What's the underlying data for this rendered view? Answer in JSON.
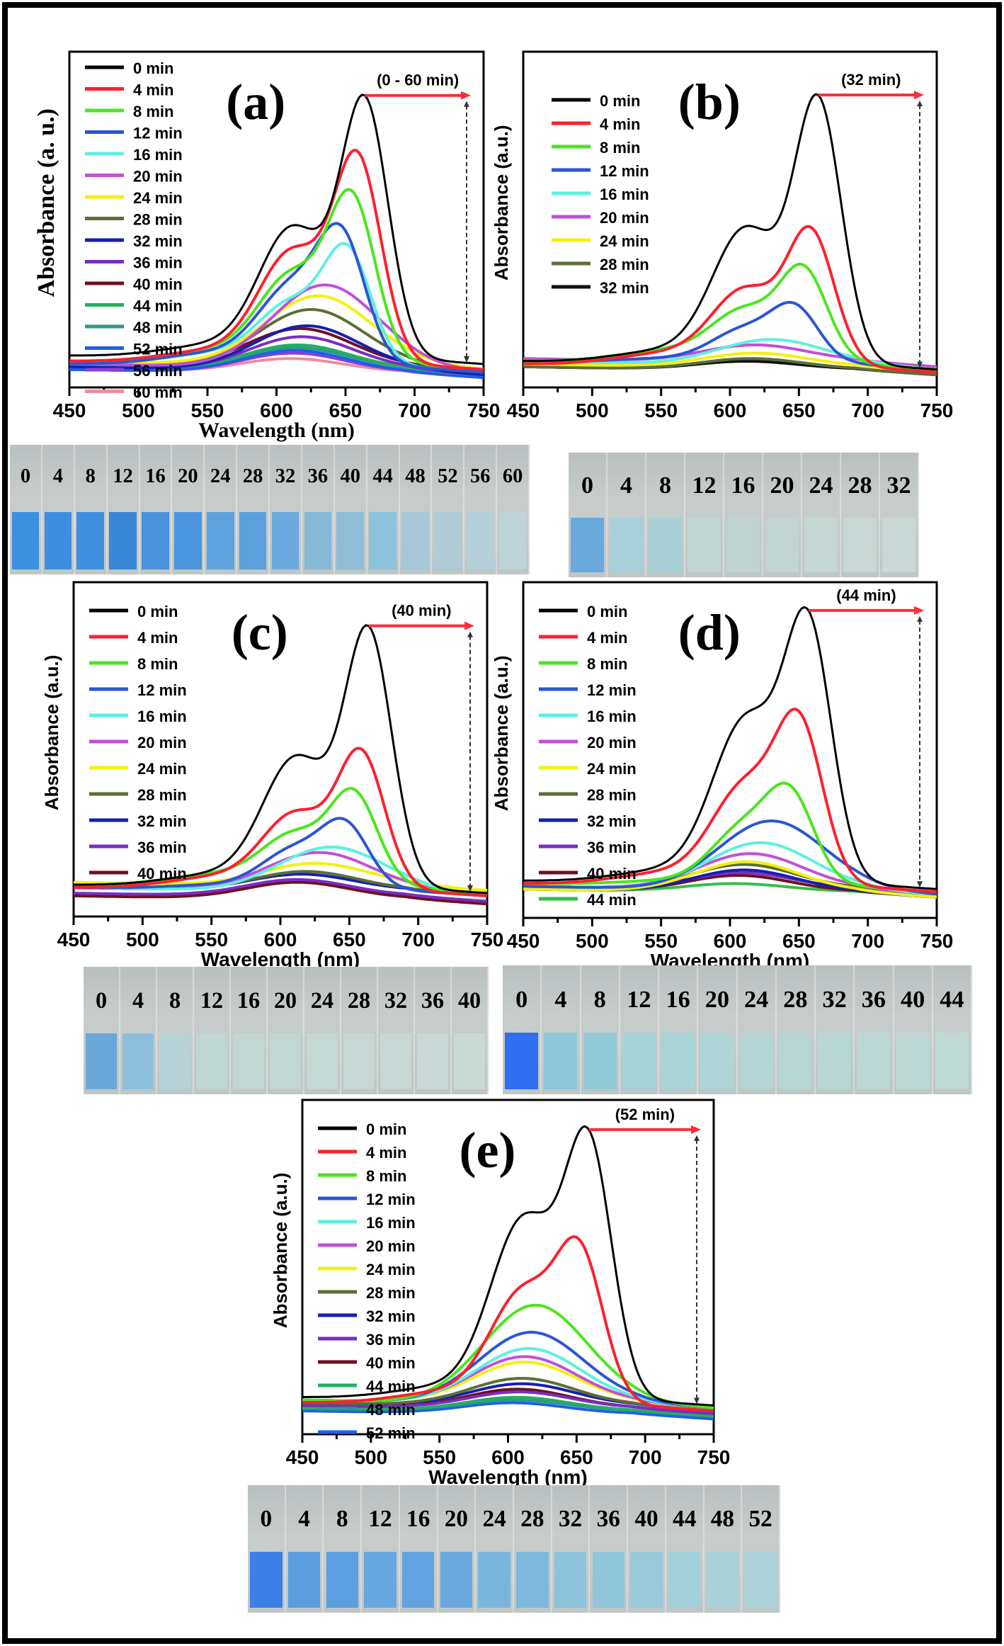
{
  "figure": {
    "panels": [
      {
        "id": "a",
        "label": "(a)",
        "time_annotation": "(0 - 60 min)",
        "xlabel": "Wavelength (nm)",
        "ylabel": "Absorbance (a. u.)",
        "label_font": "serif"
      },
      {
        "id": "b",
        "label": "(b)",
        "time_annotation": "(32 min)",
        "xlabel": "Wavelength (nm)",
        "ylabel": "Absorbance (a.u.)",
        "label_font": "sans"
      },
      {
        "id": "c",
        "label": "(c)",
        "time_annotation": "(40 min)",
        "xlabel": "Wavelength (nm)",
        "ylabel": "Absorbance (a.u.)",
        "label_font": "sans"
      },
      {
        "id": "d",
        "label": "(d)",
        "time_annotation": "(44 min)",
        "xlabel": "Wavelength (nm)",
        "ylabel": "Absorbance (a.u.)",
        "label_font": "sans"
      },
      {
        "id": "e",
        "label": "(e)",
        "time_annotation": "(52 min)",
        "xlabel": "Wavelength (nm)",
        "ylabel": "Absorbance (a.u.)",
        "label_font": "sans"
      }
    ],
    "photos": [
      {
        "id": "a",
        "labels": [
          "0",
          "4",
          "8",
          "12",
          "16",
          "20",
          "24",
          "28",
          "32",
          "36",
          "40",
          "44",
          "48",
          "52",
          "56",
          "60"
        ],
        "colors": [
          "#3d8fe0",
          "#3f8de0",
          "#3f8ee0",
          "#3a86d6",
          "#4a93dc",
          "#4a95dd",
          "#5da2dc",
          "#5aa0dc",
          "#6aaade",
          "#86b8d8",
          "#8fbdd8",
          "#8cc2dc",
          "#a6c8d6",
          "#aecbd6",
          "#b3cfd8",
          "#bcd3d8"
        ]
      },
      {
        "id": "b",
        "labels": [
          "0",
          "4",
          "8",
          "12",
          "16",
          "20",
          "24",
          "28",
          "32"
        ],
        "colors": [
          "#6aa9dc",
          "#a8d0d8",
          "#a9cfd6",
          "#c0d4d2",
          "#bfd2d0",
          "#c2d4d2",
          "#c5d6d3",
          "#c8d7d4",
          "#c9d8d5"
        ]
      },
      {
        "id": "c",
        "labels": [
          "0",
          "4",
          "8",
          "12",
          "16",
          "20",
          "24",
          "28",
          "32",
          "36",
          "40"
        ],
        "colors": [
          "#6aa8dc",
          "#8cbfdc",
          "#b5d3d6",
          "#bfd6d3",
          "#c2d6d2",
          "#c2d6d2",
          "#c6d8d4",
          "#c7d8d4",
          "#c8d8d4",
          "#cad9d5",
          "#ccdad6"
        ]
      },
      {
        "id": "d",
        "labels": [
          "0",
          "4",
          "8",
          "12",
          "16",
          "20",
          "24",
          "28",
          "32",
          "36",
          "40",
          "44"
        ],
        "colors": [
          "#2f6ff0",
          "#8ec8da",
          "#93cad8",
          "#a5d2d6",
          "#a9d4d6",
          "#aed5d6",
          "#b4d5d4",
          "#b6d6d4",
          "#b8d7d4",
          "#bcd8d4",
          "#bdd8d4",
          "#bfd9d5"
        ]
      },
      {
        "id": "e",
        "labels": [
          "0",
          "4",
          "8",
          "12",
          "16",
          "20",
          "24",
          "28",
          "32",
          "36",
          "40",
          "44",
          "48",
          "52"
        ],
        "colors": [
          "#3c7fe6",
          "#5c9de0",
          "#5c9fe0",
          "#68a8e0",
          "#62a2de",
          "#6aa8de",
          "#7ab6dc",
          "#7eb8dc",
          "#8cc2da",
          "#90c6da",
          "#98cad8",
          "#a2d0d8",
          "#a6d2d8",
          "#acd4d8"
        ]
      }
    ]
  },
  "series_colors": {
    "0 min": "#000000",
    "4 min": "#ff1f2e",
    "8 min": "#4be51e",
    "12 min": "#2a55d6",
    "16 min": "#5ef0e0",
    "20 min": "#c050d8",
    "24 min": "#f5f010",
    "28 min": "#5c6e38",
    "32 min": "#1420b0",
    "36 min": "#7a2cc4",
    "40 min": "#6e1020",
    "44 min": "#22b060",
    "48 min": "#2a9a86",
    "52 min": "#1f5ee8",
    "56 min": "#8a3ed6",
    "60 min": "#f08aa0",
    "32 min (b)": "#101010",
    "44 min (d)": "#33c048"
  },
  "annotation_color": "#ff2a3a",
  "chart_data": [
    {
      "type": "line",
      "panel": "a",
      "title": "(a)",
      "xlabel": "Wavelength (nm)",
      "ylabel": "Absorbance (a. u.)",
      "xlim": [
        450,
        750
      ],
      "ylim": [
        0,
        1.05
      ],
      "xticks": [
        450,
        500,
        550,
        600,
        650,
        700,
        750
      ],
      "yticks": [],
      "legend": "top-left",
      "annotation": "(0 - 60 min)",
      "series": [
        {
          "name": "0 min",
          "peak": 1.0,
          "shoulder": 0.62,
          "base": 0.08,
          "pk": 664
        },
        {
          "name": "4 min",
          "peak": 0.78,
          "shoulder": 0.52,
          "base": 0.06,
          "pk": 659
        },
        {
          "name": "8 min",
          "peak": 0.63,
          "shoulder": 0.42,
          "base": 0.06,
          "pk": 655
        },
        {
          "name": "12 min",
          "peak": 0.47,
          "shoulder": 0.37,
          "base": 0.05,
          "pk": 648
        },
        {
          "name": "16 min",
          "peak": 0.44,
          "shoulder": 0.3,
          "base": 0.05,
          "pk": 652
        },
        {
          "name": "20 min",
          "peak": 0.35,
          "shoulder": 0.3,
          "base": 0.05,
          "pk": 635
        },
        {
          "name": "24 min",
          "peak": 0.31,
          "shoulder": 0.28,
          "base": 0.06,
          "pk": 630
        },
        {
          "name": "28 min",
          "peak": 0.26,
          "shoulder": 0.24,
          "base": 0.05,
          "pk": 625
        },
        {
          "name": "32 min",
          "peak": 0.2,
          "shoulder": 0.2,
          "base": 0.04,
          "pk": 622
        },
        {
          "name": "36 min",
          "peak": 0.16,
          "shoulder": 0.16,
          "base": 0.04,
          "pk": 618
        },
        {
          "name": "40 min",
          "peak": 0.19,
          "shoulder": 0.19,
          "base": 0.05,
          "pk": 617
        },
        {
          "name": "44 min",
          "peak": 0.13,
          "shoulder": 0.13,
          "base": 0.04,
          "pk": 615
        },
        {
          "name": "48 min",
          "peak": 0.12,
          "shoulder": 0.12,
          "base": 0.04,
          "pk": 614
        },
        {
          "name": "52 min",
          "peak": 0.11,
          "shoulder": 0.11,
          "base": 0.03,
          "pk": 613
        },
        {
          "name": "56 min",
          "peak": 0.1,
          "shoulder": 0.1,
          "base": 0.03,
          "pk": 612
        },
        {
          "name": "60 min",
          "peak": 0.08,
          "shoulder": 0.08,
          "base": 0.03,
          "pk": 610
        }
      ]
    },
    {
      "type": "line",
      "panel": "b",
      "title": "(b)",
      "xlabel": "Wavelength (nm)",
      "ylabel": "Absorbance (a.u.)",
      "xlim": [
        450,
        750
      ],
      "ylim": [
        0,
        1.05
      ],
      "xticks": [
        450,
        500,
        550,
        600,
        650,
        700,
        750
      ],
      "legend": "top-left",
      "annotation": "(32 min)",
      "series": [
        {
          "name": "0 min",
          "peak": 1.0,
          "shoulder": 0.62,
          "base": 0.06,
          "pk": 664
        },
        {
          "name": "4 min",
          "peak": 0.52,
          "shoulder": 0.36,
          "base": 0.05,
          "pk": 659
        },
        {
          "name": "8 min",
          "peak": 0.38,
          "shoulder": 0.27,
          "base": 0.06,
          "pk": 654
        },
        {
          "name": "12 min",
          "peak": 0.24,
          "shoulder": 0.2,
          "base": 0.06,
          "pk": 648
        },
        {
          "name": "16 min",
          "peak": 0.15,
          "shoulder": 0.15,
          "base": 0.06,
          "pk": 630
        },
        {
          "name": "20 min",
          "peak": 0.13,
          "shoulder": 0.13,
          "base": 0.07,
          "pk": 618
        },
        {
          "name": "24 min",
          "peak": 0.1,
          "shoulder": 0.1,
          "base": 0.05,
          "pk": 618
        },
        {
          "name": "28 min",
          "peak": 0.08,
          "shoulder": 0.08,
          "base": 0.04,
          "pk": 615
        },
        {
          "name": "32 min",
          "peak": 0.07,
          "shoulder": 0.07,
          "base": 0.04,
          "pk": 612
        }
      ]
    },
    {
      "type": "line",
      "panel": "c",
      "title": "(c)",
      "xlabel": "Wavelength (nm)",
      "ylabel": "Absorbance (a.u.)",
      "xlim": [
        450,
        750
      ],
      "ylim": [
        0,
        1.05
      ],
      "xticks": [
        450,
        500,
        550,
        600,
        650,
        700,
        750
      ],
      "legend": "top-left",
      "annotation": "(40 min)",
      "series": [
        {
          "name": "0 min",
          "peak": 1.0,
          "shoulder": 0.62,
          "base": 0.08,
          "pk": 664
        },
        {
          "name": "4 min",
          "peak": 0.55,
          "shoulder": 0.38,
          "base": 0.07,
          "pk": 659
        },
        {
          "name": "8 min",
          "peak": 0.4,
          "shoulder": 0.29,
          "base": 0.08,
          "pk": 654
        },
        {
          "name": "12 min",
          "peak": 0.28,
          "shoulder": 0.24,
          "base": 0.07,
          "pk": 648
        },
        {
          "name": "16 min",
          "peak": 0.23,
          "shoulder": 0.21,
          "base": 0.07,
          "pk": 637
        },
        {
          "name": "20 min",
          "peak": 0.21,
          "shoulder": 0.2,
          "base": 0.07,
          "pk": 628
        },
        {
          "name": "24 min",
          "peak": 0.17,
          "shoulder": 0.17,
          "base": 0.09,
          "pk": 625
        },
        {
          "name": "28 min",
          "peak": 0.14,
          "shoulder": 0.14,
          "base": 0.07,
          "pk": 618
        },
        {
          "name": "32 min",
          "peak": 0.13,
          "shoulder": 0.13,
          "base": 0.07,
          "pk": 615
        },
        {
          "name": "36 min",
          "peak": 0.11,
          "shoulder": 0.11,
          "base": 0.05,
          "pk": 612
        },
        {
          "name": "40 min",
          "peak": 0.1,
          "shoulder": 0.1,
          "base": 0.04,
          "pk": 612
        }
      ]
    },
    {
      "type": "line",
      "panel": "d",
      "title": "(d)",
      "xlabel": "Wavelength (nm)",
      "ylabel": "Absorbance (a.u.)",
      "xlim": [
        450,
        750
      ],
      "ylim": [
        0,
        1.05
      ],
      "xticks": [
        450,
        500,
        550,
        600,
        650,
        700,
        750
      ],
      "legend": "top-left",
      "annotation": "(44 min)",
      "series": [
        {
          "name": "0 min",
          "peak": 1.0,
          "shoulder": 0.78,
          "base": 0.1,
          "pk": 657
        },
        {
          "name": "4 min",
          "peak": 0.63,
          "shoulder": 0.5,
          "base": 0.09,
          "pk": 651
        },
        {
          "name": "8 min",
          "peak": 0.37,
          "shoulder": 0.34,
          "base": 0.09,
          "pk": 645
        },
        {
          "name": "12 min",
          "peak": 0.33,
          "shoulder": 0.31,
          "base": 0.08,
          "pk": 630
        },
        {
          "name": "16 min",
          "peak": 0.25,
          "shoulder": 0.25,
          "base": 0.08,
          "pk": 622
        },
        {
          "name": "20 min",
          "peak": 0.21,
          "shoulder": 0.21,
          "base": 0.08,
          "pk": 615
        },
        {
          "name": "24 min",
          "peak": 0.18,
          "shoulder": 0.18,
          "base": 0.07,
          "pk": 612
        },
        {
          "name": "28 min",
          "peak": 0.17,
          "shoulder": 0.17,
          "base": 0.08,
          "pk": 610
        },
        {
          "name": "32 min",
          "peak": 0.15,
          "shoulder": 0.15,
          "base": 0.07,
          "pk": 610
        },
        {
          "name": "36 min",
          "peak": 0.14,
          "shoulder": 0.14,
          "base": 0.08,
          "pk": 608
        },
        {
          "name": "40 min",
          "peak": 0.13,
          "shoulder": 0.13,
          "base": 0.07,
          "pk": 606
        },
        {
          "name": "44 min",
          "peak": 0.1,
          "shoulder": 0.1,
          "base": 0.07,
          "pk": 603
        }
      ]
    },
    {
      "type": "line",
      "panel": "e",
      "title": "(e)",
      "xlabel": "Wavelength (nm)",
      "ylabel": "Absorbance (a.u.)",
      "xlim": [
        450,
        750
      ],
      "ylim": [
        0,
        1.05
      ],
      "xticks": [
        450,
        500,
        550,
        600,
        650,
        700,
        750
      ],
      "legend": "top-left",
      "annotation": "(52 min)",
      "series": [
        {
          "name": "0 min",
          "peak": 1.0,
          "shoulder": 0.86,
          "base": 0.1,
          "pk": 659
        },
        {
          "name": "4 min",
          "peak": 0.59,
          "shoulder": 0.55,
          "base": 0.08,
          "pk": 653
        },
        {
          "name": "8 min",
          "peak": 0.45,
          "shoulder": 0.45,
          "base": 0.09,
          "pk": 620
        },
        {
          "name": "12 min",
          "peak": 0.35,
          "shoulder": 0.35,
          "base": 0.09,
          "pk": 617
        },
        {
          "name": "16 min",
          "peak": 0.29,
          "shoulder": 0.29,
          "base": 0.09,
          "pk": 615
        },
        {
          "name": "20 min",
          "peak": 0.26,
          "shoulder": 0.26,
          "base": 0.09,
          "pk": 612
        },
        {
          "name": "24 min",
          "peak": 0.24,
          "shoulder": 0.24,
          "base": 0.09,
          "pk": 612
        },
        {
          "name": "28 min",
          "peak": 0.18,
          "shoulder": 0.18,
          "base": 0.08,
          "pk": 610
        },
        {
          "name": "32 min",
          "peak": 0.16,
          "shoulder": 0.16,
          "base": 0.08,
          "pk": 610
        },
        {
          "name": "36 min",
          "peak": 0.13,
          "shoulder": 0.13,
          "base": 0.07,
          "pk": 608
        },
        {
          "name": "40 min",
          "peak": 0.14,
          "shoulder": 0.14,
          "base": 0.07,
          "pk": 607
        },
        {
          "name": "44 min",
          "peak": 0.11,
          "shoulder": 0.11,
          "base": 0.06,
          "pk": 606
        },
        {
          "name": "48 min",
          "peak": 0.1,
          "shoulder": 0.1,
          "base": 0.06,
          "pk": 605
        },
        {
          "name": "52 min",
          "peak": 0.09,
          "shoulder": 0.09,
          "base": 0.05,
          "pk": 603
        }
      ]
    }
  ]
}
